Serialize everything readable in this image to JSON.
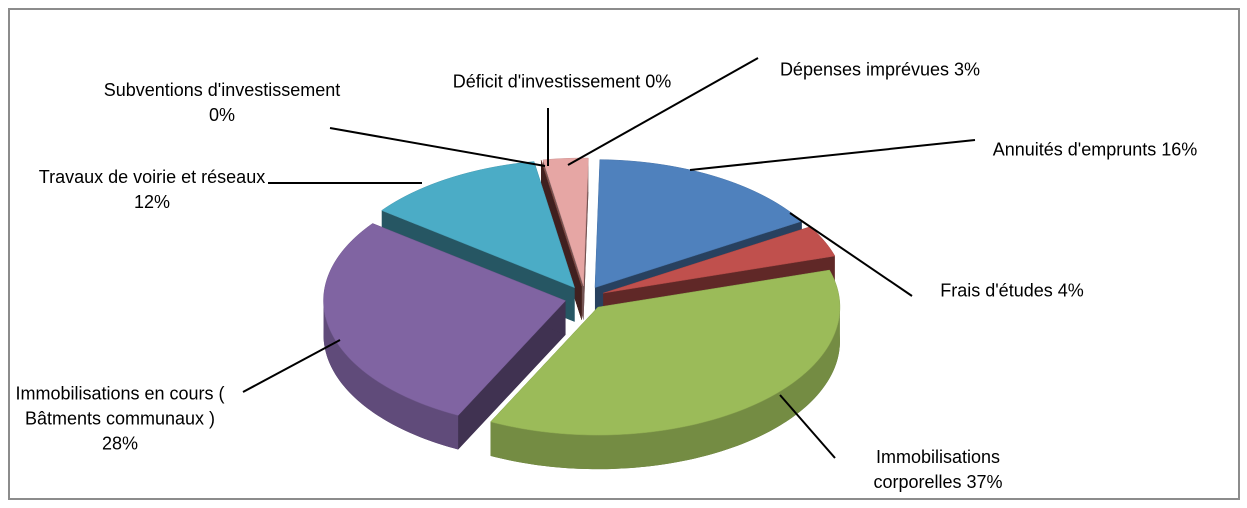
{
  "chart_data": {
    "type": "pie",
    "categories": [
      "Annuités d'emprunts",
      "Frais d'études",
      "Immobilisations corporelles",
      "Immobilisations en cours  ( Bâtments communaux )",
      "Travaux de voirie et réseaux",
      "Subventions d'investissement",
      "Déficit d'investissement",
      "Dépenses imprévues"
    ],
    "values": [
      16,
      4,
      37,
      28,
      12,
      0,
      0,
      3
    ],
    "value_labels": [
      "16%",
      "4%",
      "37%",
      "28%",
      "12%",
      "0%",
      "0%",
      "3%"
    ],
    "colors": [
      "#4f81bd",
      "#c0504d",
      "#9bbb59",
      "#8064a2",
      "#4bacc6",
      "#f79646",
      "#7f3f3d",
      "#e6a6a4"
    ]
  }
}
